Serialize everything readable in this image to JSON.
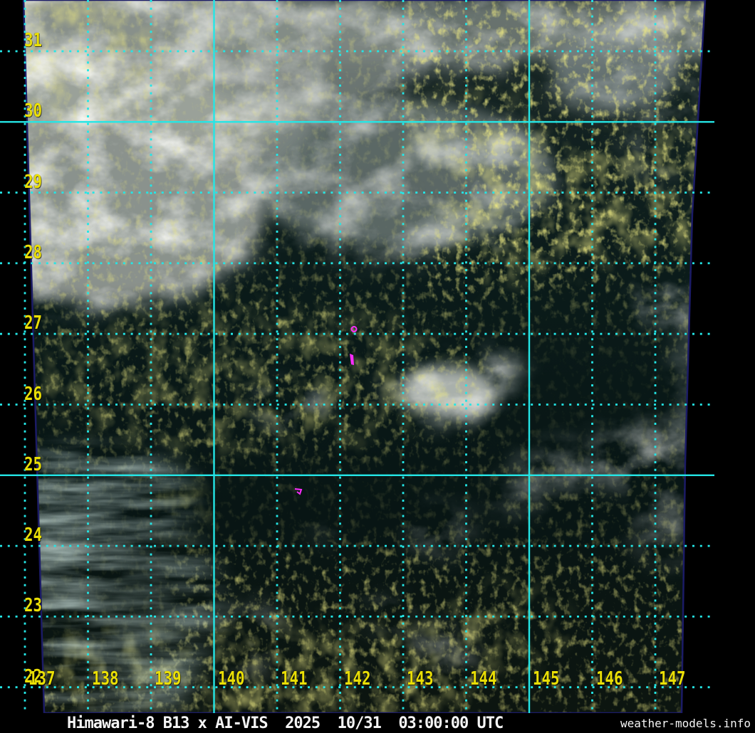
{
  "map": {
    "lat_labels": [
      "31",
      "30",
      "29",
      "28",
      "27",
      "26",
      "25",
      "24",
      "23",
      "22"
    ],
    "lon_labels": [
      "137",
      "138",
      "139",
      "140",
      "141",
      "142",
      "143",
      "144",
      "145",
      "146",
      "147"
    ],
    "solid_lat_labels": [
      "30",
      "25"
    ],
    "solid_lon_labels": [
      "140",
      "145"
    ],
    "grid_color": "#24e6e6",
    "coord_label_color": "#eadf06",
    "storm_mark_color": "#ff2cff"
  },
  "caption": {
    "title": "Himawari-8 B13 x AI-VIS  2025  10/31  03:00:00 UTC",
    "credit": "weather-models.info",
    "text_color": "#f5f5f5",
    "background": "#000000"
  }
}
